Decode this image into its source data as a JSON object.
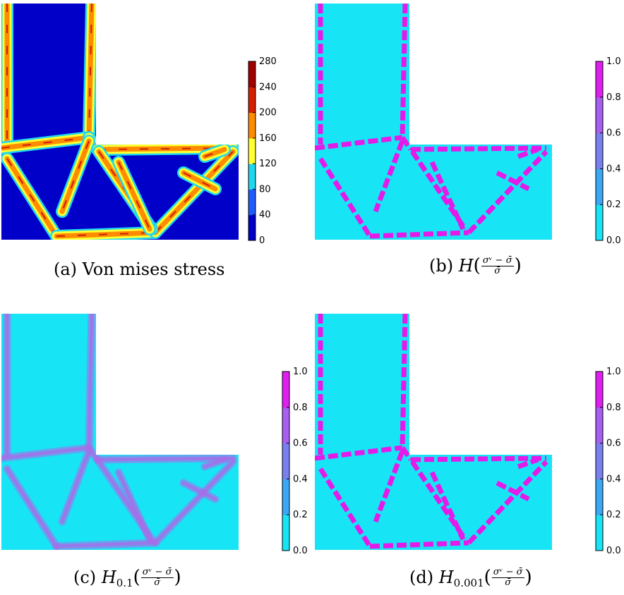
{
  "chart_data": [
    {
      "type": "heatmap",
      "caption": "(a) Von mises stress",
      "colorbar": {
        "ticks": [
          "0",
          "40",
          "80",
          "120",
          "160",
          "200",
          "240",
          "280"
        ],
        "levels": [
          "#0000c8",
          "#1f5cff",
          "#21d7ee",
          "#ffff33",
          "#ff8c00",
          "#d42000",
          "#a00000"
        ]
      },
      "colors": {
        "background": "#0000c8",
        "member": "#ff8c00",
        "edge": "#ffff33",
        "peak": "#cc1b00"
      }
    },
    {
      "type": "heatmap",
      "caption_label": "(b)",
      "func": "H",
      "subscript": "",
      "numerator": "σᵛ − σ̄",
      "denominator": "σ̄",
      "colorbar": {
        "ticks": [
          "0.0",
          "0.2",
          "0.4",
          "0.6",
          "0.8",
          "1.0"
        ],
        "levels": [
          "#17e5f5",
          "#3aa8f5",
          "#7a7ff0",
          "#a85ef0",
          "#e01ef0"
        ]
      },
      "colors": {
        "background": "#17e5f5",
        "member": "#e41ae8"
      }
    },
    {
      "type": "heatmap",
      "caption_label": "(c)",
      "func": "H",
      "subscript": "0.1",
      "numerator": "σᵛ − σ̄",
      "denominator": "σ̄",
      "colorbar": {
        "ticks": [
          "0.0",
          "0.2",
          "0.4",
          "0.6",
          "0.8",
          "1.0"
        ],
        "levels": [
          "#17e5f5",
          "#3aa8f5",
          "#7a7ff0",
          "#a85ef0",
          "#e01ef0"
        ]
      },
      "colors": {
        "background": "#17e5f5",
        "member": "#a86de8"
      }
    },
    {
      "type": "heatmap",
      "caption_label": "(d)",
      "func": "H",
      "subscript": "0.001",
      "numerator": "σᵛ − σ̄",
      "denominator": "σ̄",
      "colorbar": {
        "ticks": [
          "0.0",
          "0.2",
          "0.4",
          "0.6",
          "0.8",
          "1.0"
        ],
        "levels": [
          "#17e5f5",
          "#3aa8f5",
          "#7a7ff0",
          "#a85ef0",
          "#e01ef0"
        ]
      },
      "colors": {
        "background": "#17e5f5",
        "member": "#e41ae8"
      }
    }
  ]
}
